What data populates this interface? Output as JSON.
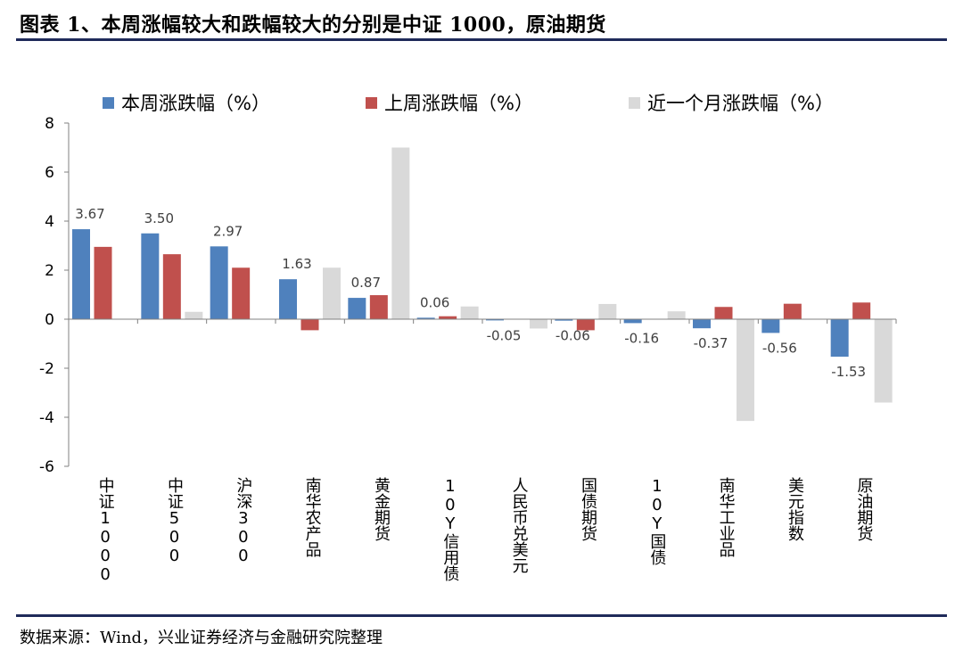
{
  "header": {
    "title": "图表 1、本周涨幅较大和跌幅较大的分别是中证 1000，原油期货"
  },
  "footer": {
    "source": "数据来源：Wind，兴业证券经济与金融研究院整理"
  },
  "chart_data": {
    "type": "bar",
    "categories": [
      "中证1000",
      "中证500",
      "沪深300",
      "南华农产品",
      "黄金期货",
      "10Y信用债",
      "人民币兑美元",
      "国债期货",
      "10Y国债",
      "南华工业品",
      "美元指数",
      "原油期货"
    ],
    "series": [
      {
        "name": "本周涨跌幅（%）",
        "color": "#4F81BD",
        "values": [
          3.67,
          3.5,
          2.97,
          1.63,
          0.87,
          0.06,
          -0.05,
          -0.06,
          -0.16,
          -0.37,
          -0.56,
          -1.53
        ]
      },
      {
        "name": "上周涨跌幅（%）",
        "color": "#C0504D",
        "values": [
          2.95,
          2.65,
          2.1,
          -0.45,
          0.98,
          0.12,
          0.0,
          -0.45,
          0.0,
          0.5,
          0.63,
          0.68
        ]
      },
      {
        "name": "近一个月涨跌幅（%）",
        "color": "#D9D9D9",
        "values": [
          0.0,
          0.3,
          0.0,
          2.1,
          7.0,
          0.52,
          -0.38,
          0.62,
          0.32,
          -4.15,
          0.0,
          -3.4
        ]
      }
    ],
    "data_labels": [
      "3.67",
      "3.50",
      "2.97",
      "1.63",
      "0.87",
      "0.06",
      "-0.05",
      "-0.06",
      "-0.16",
      "-0.37",
      "-0.56",
      "-1.53"
    ],
    "yticks": [
      "8",
      "6",
      "4",
      "2",
      "0",
      "-2",
      "-4",
      "-6"
    ],
    "ylim": [
      -6,
      8
    ],
    "xlabel": "",
    "ylabel": "",
    "legend_position": "top",
    "grid": false
  }
}
